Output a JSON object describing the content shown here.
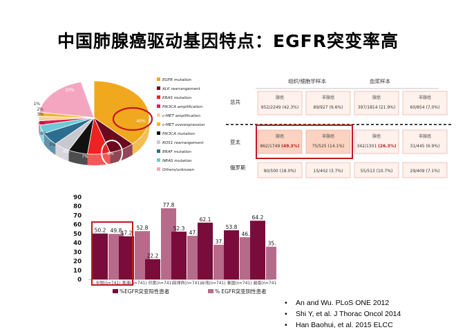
{
  "slide": {
    "title": "中国肺腺癌驱动基因特点：EGFR突变率高"
  },
  "pie": {
    "colors": [
      "#F0A81E",
      "#6B0A1E",
      "#EE2222",
      "#E01A50",
      "#F8CFA0",
      "#F6B42C",
      "#111111",
      "#C8C8D0",
      "#2C6E90",
      "#6BC9D8",
      "#F4A6C0"
    ],
    "slices": [
      {
        "legend": "EGFR mutation",
        "value": 40,
        "label": "40%"
      },
      {
        "legend": "ALK rearrangement",
        "value": 8,
        "label": "8%"
      },
      {
        "legend": "KRAS mutation",
        "value": 7,
        "label": "7%"
      },
      {
        "legend": "PIK3CA amplification",
        "value": 0,
        "label": ""
      },
      {
        "legend": "c-MET amplification",
        "value": 0,
        "label": ""
      },
      {
        "legend": "c-MET overexpression",
        "value": 0,
        "label": ""
      },
      {
        "legend": "PIK3CA mutation",
        "value": 6,
        "label": "6%"
      },
      {
        "legend": "ROS1 rearrangement",
        "value": 5,
        "label": "5%"
      },
      {
        "legend": "BRAF mutation",
        "value": 6,
        "label": "6%"
      },
      {
        "legend": "NRAS mutation",
        "value": 4,
        "label": "4%"
      },
      {
        "legend": "Others/unknown",
        "value": 20,
        "label": "20%"
      }
    ],
    "extra_labels": [
      "1%",
      "2%",
      "3%"
    ]
  },
  "table": {
    "col_headers": [
      "组织/细胞学样本",
      "血浆样本"
    ],
    "sub_headers": [
      "腺癌",
      "非腺癌",
      "腺癌",
      "非腺癌"
    ],
    "rows": [
      {
        "name": "总共",
        "cells": [
          "952/2249 (42.3%)",
          "89/927 (9.6%)",
          "397/1814 (21.9%)",
          "60/854 (7.0%)"
        ]
      },
      {
        "name": "亚太",
        "cells": [
          "862/1749 ",
          "75/525 (14.1%)",
          "342/1301 ",
          "31/445 (6.9%)"
        ],
        "highlights": [
          "(49.3%)",
          "",
          "(26.3%)",
          ""
        ]
      },
      {
        "name": "俄罗斯",
        "cells": [
          "90/500 (18.0%)",
          "15/402 (3.7%)",
          "55/513 (10.7%)",
          "29/409 (7.1%)"
        ]
      }
    ]
  },
  "chart_data": {
    "type": "bar",
    "categories": [
      "中国(n=741)",
      "香港(n=741)",
      "印度(n=741)",
      "菲律宾(n=741)",
      "台湾(n=741)",
      "泰国(n=741)",
      "越南(n=741)"
    ],
    "series": [
      {
        "name": "%EGFR突变阳性患者",
        "values": [
          50.2,
          47.2,
          22.2,
          52.3,
          62.1,
          53.8,
          64.2
        ],
        "color": "#7A0C3C"
      },
      {
        "name": "% EGFR突变阴性患者",
        "values": [
          49.8,
          52.8,
          77.8,
          47.7,
          37.9,
          46.2,
          35.8
        ],
        "color": "#B76A8A"
      }
    ],
    "ylim": [
      0,
      90
    ],
    "yticks": [
      0,
      10,
      20,
      30,
      40,
      50,
      60,
      70,
      80,
      90
    ],
    "value_labels": [
      "50.2",
      "49.8",
      "47.2",
      "52.8",
      "22.2",
      "77.8",
      "52.3",
      "47.7",
      "62.1",
      "37.9",
      "53.8",
      "46.2",
      "64.2",
      "35.8"
    ],
    "highlight_color": "#C0161D"
  },
  "references": [
    "An and Wu. PLoS ONE 2012",
    "Shi Y, et al. J Thorac Oncol 2014",
    "Han Baohui, et al. 2015  ELCC"
  ],
  "bullet": "•"
}
